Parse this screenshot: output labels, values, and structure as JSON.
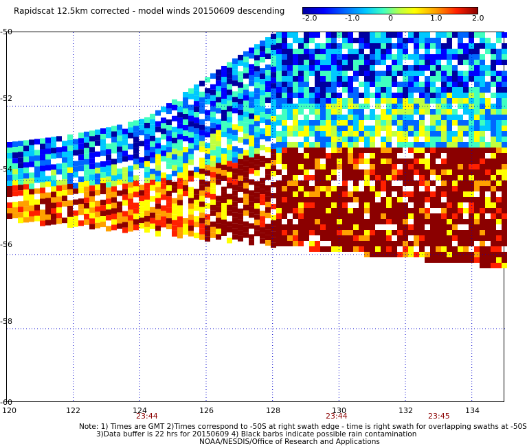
{
  "title": "Rapidscat 12.5km corrected - model winds 20150609 descending",
  "colorbar": {
    "labels": [
      "-2.0",
      "-1.0",
      "0",
      "1.0",
      "2.0"
    ],
    "range": [
      -2.0,
      2.0
    ],
    "colors": [
      "#0000a0",
      "#0000ff",
      "#0066ff",
      "#00c8ff",
      "#40ffc0",
      "#c0ff40",
      "#ffff00",
      "#ffa000",
      "#ff2000",
      "#8b0000"
    ]
  },
  "map": {
    "lon_range": [
      120,
      135
    ],
    "lat_range": [
      -60,
      -50
    ],
    "lat_labels": [
      "-50",
      "-52",
      "-54",
      "-56",
      "-58",
      "-60"
    ],
    "lon_labels": [
      "120",
      "122",
      "124",
      "126",
      "128",
      "130",
      "132",
      "134"
    ],
    "grid": "dotted blue"
  },
  "time_labels": [
    "23:44",
    "23:44",
    "23:45"
  ],
  "notes": [
    "Note: 1) Times are GMT 2)Times correspond to -50S at right swath edge - time is right swath for overlapping swaths at -50S",
    "3)Data buffer is 22 hrs for 20150609 4) Black barbs indicate possible rain contamination",
    "NOAA/NESDIS/Office of Research and Applications"
  ]
}
